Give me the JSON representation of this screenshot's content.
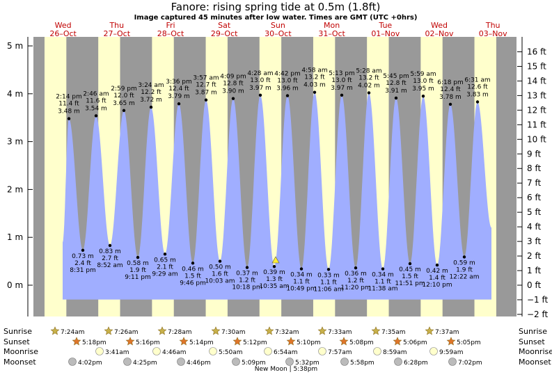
{
  "chart_data": {
    "type": "area",
    "title": "Fanore: rising  spring tide at 0.5m (1.8ft)",
    "subtitle": "Image captured 45 minutes after low water. Times are GMT (UTC +0hrs)",
    "y_left": {
      "unit": "m",
      "ylim": [
        -0.5,
        5.2
      ],
      "ticks": [
        "0 m",
        "1 m",
        "2 m",
        "3 m",
        "4 m",
        "5 m"
      ],
      "values": [
        0,
        1,
        2,
        3,
        4,
        5
      ]
    },
    "y_right": {
      "unit": "ft",
      "ticks": [
        "−2 ft",
        "−1 ft",
        "0 ft",
        "1 ft",
        "2 ft",
        "3 ft",
        "4 ft",
        "5 ft",
        "6 ft",
        "7 ft",
        "8 ft",
        "9 ft",
        "10 ft",
        "11 ft",
        "12 ft",
        "13 ft",
        "14 ft",
        "15 ft",
        "16 ft"
      ],
      "values": [
        -2,
        -1,
        0,
        1,
        2,
        3,
        4,
        5,
        6,
        7,
        8,
        9,
        10,
        11,
        12,
        13,
        14,
        15,
        16
      ]
    },
    "days": [
      {
        "day": "Wed",
        "date": "26–Oct"
      },
      {
        "day": "Thu",
        "date": "27–Oct"
      },
      {
        "day": "Fri",
        "date": "28–Oct"
      },
      {
        "day": "Sat",
        "date": "29–Oct"
      },
      {
        "day": "Sun",
        "date": "30–Oct"
      },
      {
        "day": "Mon",
        "date": "31–Oct"
      },
      {
        "day": "Tue",
        "date": "01–Nov"
      },
      {
        "day": "Wed",
        "date": "02–Nov"
      },
      {
        "day": "Thu",
        "date": "03–Nov"
      }
    ],
    "highs": [
      {
        "time": "2:14 pm",
        "ft": "11.4 ft",
        "m": "3.48 m",
        "value": 3.48
      },
      {
        "time": "2:46 am",
        "ft": "11.6 ft",
        "m": "3.54 m",
        "value": 3.54
      },
      {
        "time": "2:59 pm",
        "ft": "12.0 ft",
        "m": "3.65 m",
        "value": 3.65
      },
      {
        "time": "3:24 am",
        "ft": "12.2 ft",
        "m": "3.72 m",
        "value": 3.72
      },
      {
        "time": "3:36 pm",
        "ft": "12.4 ft",
        "m": "3.79 m",
        "value": 3.79
      },
      {
        "time": "3:57 am",
        "ft": "12.7 ft",
        "m": "3.87 m",
        "value": 3.87
      },
      {
        "time": "4:09 pm",
        "ft": "12.8 ft",
        "m": "3.90 m",
        "value": 3.9
      },
      {
        "time": "4:28 am",
        "ft": "13.0 ft",
        "m": "3.97 m",
        "value": 3.97
      },
      {
        "time": "4:42 pm",
        "ft": "13.0 ft",
        "m": "3.96 m",
        "value": 3.96
      },
      {
        "time": "4:58 am",
        "ft": "13.2 ft",
        "m": "4.03 m",
        "value": 4.03
      },
      {
        "time": "5:13 pm",
        "ft": "13.0 ft",
        "m": "3.97 m",
        "value": 3.97
      },
      {
        "time": "5:28 am",
        "ft": "13.2 ft",
        "m": "4.02 m",
        "value": 4.02
      },
      {
        "time": "5:45 pm",
        "ft": "12.8 ft",
        "m": "3.91 m",
        "value": 3.91
      },
      {
        "time": "5:59 am",
        "ft": "13.0 ft",
        "m": "3.95 m",
        "value": 3.95
      },
      {
        "time": "6:18 pm",
        "ft": "12.4 ft",
        "m": "3.78 m",
        "value": 3.78
      },
      {
        "time": "6:31 am",
        "ft": "12.6 ft",
        "m": "3.83 m",
        "value": 3.83
      }
    ],
    "lows": [
      {
        "m": "0.73 m",
        "ft": "2.4 ft",
        "time": "8:31 pm",
        "value": 0.73
      },
      {
        "m": "0.83 m",
        "ft": "2.7 ft",
        "time": "8:52 am",
        "value": 0.83
      },
      {
        "m": "0.58 m",
        "ft": "1.9 ft",
        "time": "9:11 pm",
        "value": 0.58
      },
      {
        "m": "0.65 m",
        "ft": "2.1 ft",
        "time": "9:29 am",
        "value": 0.65
      },
      {
        "m": "0.46 m",
        "ft": "1.5 ft",
        "time": "9:46 pm",
        "value": 0.46
      },
      {
        "m": "0.50 m",
        "ft": "1.6 ft",
        "time": "10:03 am",
        "value": 0.5
      },
      {
        "m": "0.37 m",
        "ft": "1.2 ft",
        "time": "10:18 pm",
        "value": 0.37
      },
      {
        "m": "0.39 m",
        "ft": "1.3 ft",
        "time": "10:35 am",
        "value": 0.39
      },
      {
        "m": "0.34 m",
        "ft": "1.1 ft",
        "time": "10:49 pm",
        "value": 0.34
      },
      {
        "m": "0.33 m",
        "ft": "1.1 ft",
        "time": "11:06 am",
        "value": 0.33
      },
      {
        "m": "0.36 m",
        "ft": "1.2 ft",
        "time": "11:20 pm",
        "value": 0.36
      },
      {
        "m": "0.34 m",
        "ft": "1.1 ft",
        "time": "11:38 am",
        "value": 0.34
      },
      {
        "m": "0.45 m",
        "ft": "1.5 ft",
        "time": "11:51 pm",
        "value": 0.45
      },
      {
        "m": "0.42 m",
        "ft": "1.4 ft",
        "time": "12:10 pm",
        "value": 0.42
      },
      {
        "m": "0.59 m",
        "ft": "1.9 ft",
        "time": "12:22 am",
        "value": 0.59
      }
    ],
    "rows": {
      "sunrise": {
        "label": "Sunrise",
        "times": [
          "7:24am",
          "7:26am",
          "7:28am",
          "7:30am",
          "7:32am",
          "7:33am",
          "7:35am",
          "7:37am"
        ]
      },
      "sunset": {
        "label": "Sunset",
        "times": [
          "5:18pm",
          "5:16pm",
          "5:14pm",
          "5:12pm",
          "5:10pm",
          "5:08pm",
          "5:06pm",
          "5:05pm"
        ]
      },
      "moonrise": {
        "label": "Moonrise",
        "times": [
          "3:41am",
          "4:46am",
          "5:50am",
          "6:54am",
          "7:57am",
          "8:59am",
          "9:59am"
        ]
      },
      "moonset": {
        "label": "Moonset",
        "times": [
          "4:02pm",
          "4:25pm",
          "4:46pm",
          "5:09pm",
          "5:32pm",
          "5:58pm",
          "6:28pm",
          "7:02pm"
        ]
      }
    },
    "moon_note": "New Moon | 5:38pm",
    "colors": {
      "tide": "#a0aeff",
      "day": "#ffffcc",
      "night": "#999999",
      "day_text": "#c00000",
      "sun_star": "#c8b14a",
      "sunset_star": "#e0752a",
      "moon": "#ffffcc",
      "moonset": "#bbbbbb",
      "marker": "#ffee33"
    }
  }
}
